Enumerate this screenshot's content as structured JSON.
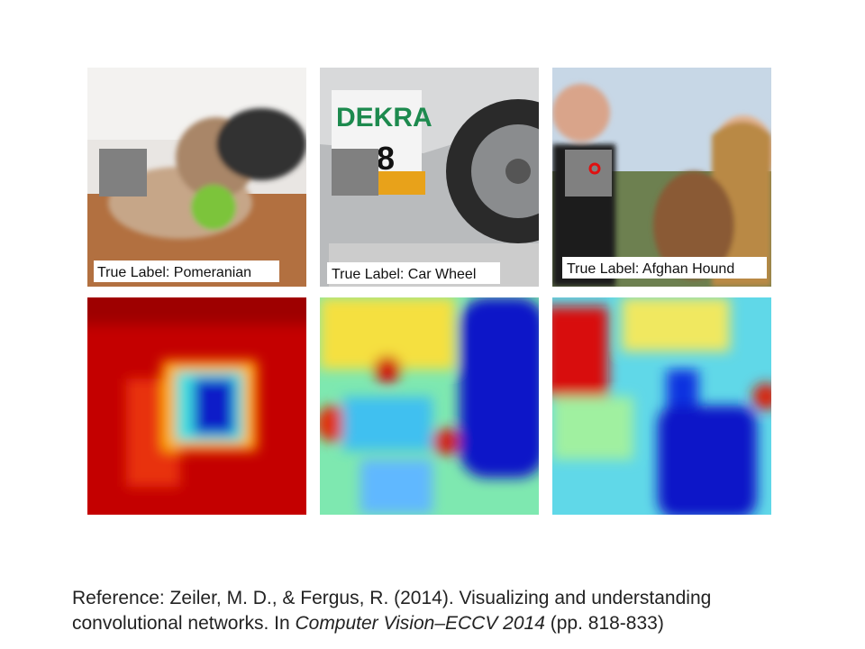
{
  "panels": [
    {
      "label": "True Label: Pomeranian"
    },
    {
      "label": "True Label: Car Wheel",
      "sign": "DEKRA",
      "number": "8"
    },
    {
      "label": "True Label: Afghan Hound"
    }
  ],
  "reference": {
    "line1": "Reference: Zeiler, M. D., & Fergus, R. (2014). Visualizing and understanding",
    "line2_start": "convolutional networks. In ",
    "venue": "Computer Vision–ECCV 2014",
    "pages": " (pp. 818-833)"
  }
}
